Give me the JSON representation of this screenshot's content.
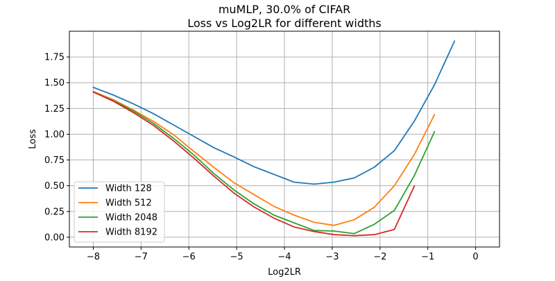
{
  "chart_data": {
    "type": "line",
    "title": "muMLP, 30.0% of CIFAR",
    "subtitle": "Loss vs Log2LR for different widths",
    "xlabel": "Log2LR",
    "ylabel": "Loss",
    "xlim": [
      -8.5,
      0.5
    ],
    "ylim": [
      -0.095,
      2.0
    ],
    "xticks": [
      -8,
      -7,
      -6,
      -5,
      -4,
      -3,
      -2,
      -1,
      0
    ],
    "xtick_labels": [
      "−8",
      "−7",
      "−6",
      "−5",
      "−4",
      "−3",
      "−2",
      "−1",
      "0"
    ],
    "yticks": [
      0.0,
      0.25,
      0.5,
      0.75,
      1.0,
      1.25,
      1.5,
      1.75
    ],
    "ytick_labels": [
      "0.00",
      "0.25",
      "0.50",
      "0.75",
      "1.00",
      "1.25",
      "1.50",
      "1.75"
    ],
    "grid": true,
    "legend_position": "lower-left",
    "series": [
      {
        "name": "Width 128",
        "color": "#1f77b4",
        "x": [
          -8.0,
          -7.58,
          -7.16,
          -6.74,
          -6.32,
          -5.9,
          -5.48,
          -5.06,
          -4.64,
          -4.22,
          -3.8,
          -3.38,
          -2.96,
          -2.54,
          -2.12,
          -1.7,
          -1.28,
          -0.86,
          -0.44
        ],
        "y": [
          1.455,
          1.38,
          1.295,
          1.2,
          1.09,
          0.98,
          0.87,
          0.78,
          0.685,
          0.61,
          0.535,
          0.515,
          0.535,
          0.575,
          0.68,
          0.84,
          1.13,
          1.48,
          1.905
        ]
      },
      {
        "name": "Width 512",
        "color": "#ff7f0e",
        "x": [
          -8.0,
          -7.58,
          -7.16,
          -6.74,
          -6.32,
          -5.9,
          -5.48,
          -5.06,
          -4.64,
          -4.22,
          -3.8,
          -3.38,
          -2.96,
          -2.54,
          -2.12,
          -1.7,
          -1.28,
          -0.86
        ],
        "y": [
          1.415,
          1.335,
          1.235,
          1.125,
          0.995,
          0.835,
          0.68,
          0.53,
          0.415,
          0.3,
          0.215,
          0.145,
          0.115,
          0.17,
          0.29,
          0.5,
          0.805,
          1.19
        ]
      },
      {
        "name": "Width 2048",
        "color": "#2ca02c",
        "x": [
          -8.0,
          -7.58,
          -7.16,
          -6.74,
          -6.32,
          -5.9,
          -5.48,
          -5.06,
          -4.64,
          -4.22,
          -3.8,
          -3.38,
          -2.96,
          -2.54,
          -2.12,
          -1.7,
          -1.28,
          -0.86
        ],
        "y": [
          1.41,
          1.325,
          1.225,
          1.105,
          0.96,
          0.8,
          0.62,
          0.46,
          0.325,
          0.215,
          0.14,
          0.065,
          0.06,
          0.035,
          0.125,
          0.26,
          0.6,
          1.025
        ]
      },
      {
        "name": "Width 8192",
        "color": "#d62728",
        "x": [
          -8.0,
          -7.58,
          -7.16,
          -6.74,
          -6.32,
          -5.9,
          -5.48,
          -5.06,
          -4.64,
          -4.22,
          -3.8,
          -3.38,
          -2.96,
          -2.54,
          -2.12,
          -1.7,
          -1.28
        ],
        "y": [
          1.41,
          1.32,
          1.21,
          1.085,
          0.935,
          0.77,
          0.595,
          0.43,
          0.295,
          0.185,
          0.1,
          0.055,
          0.025,
          0.015,
          0.025,
          0.075,
          0.5
        ]
      }
    ]
  }
}
